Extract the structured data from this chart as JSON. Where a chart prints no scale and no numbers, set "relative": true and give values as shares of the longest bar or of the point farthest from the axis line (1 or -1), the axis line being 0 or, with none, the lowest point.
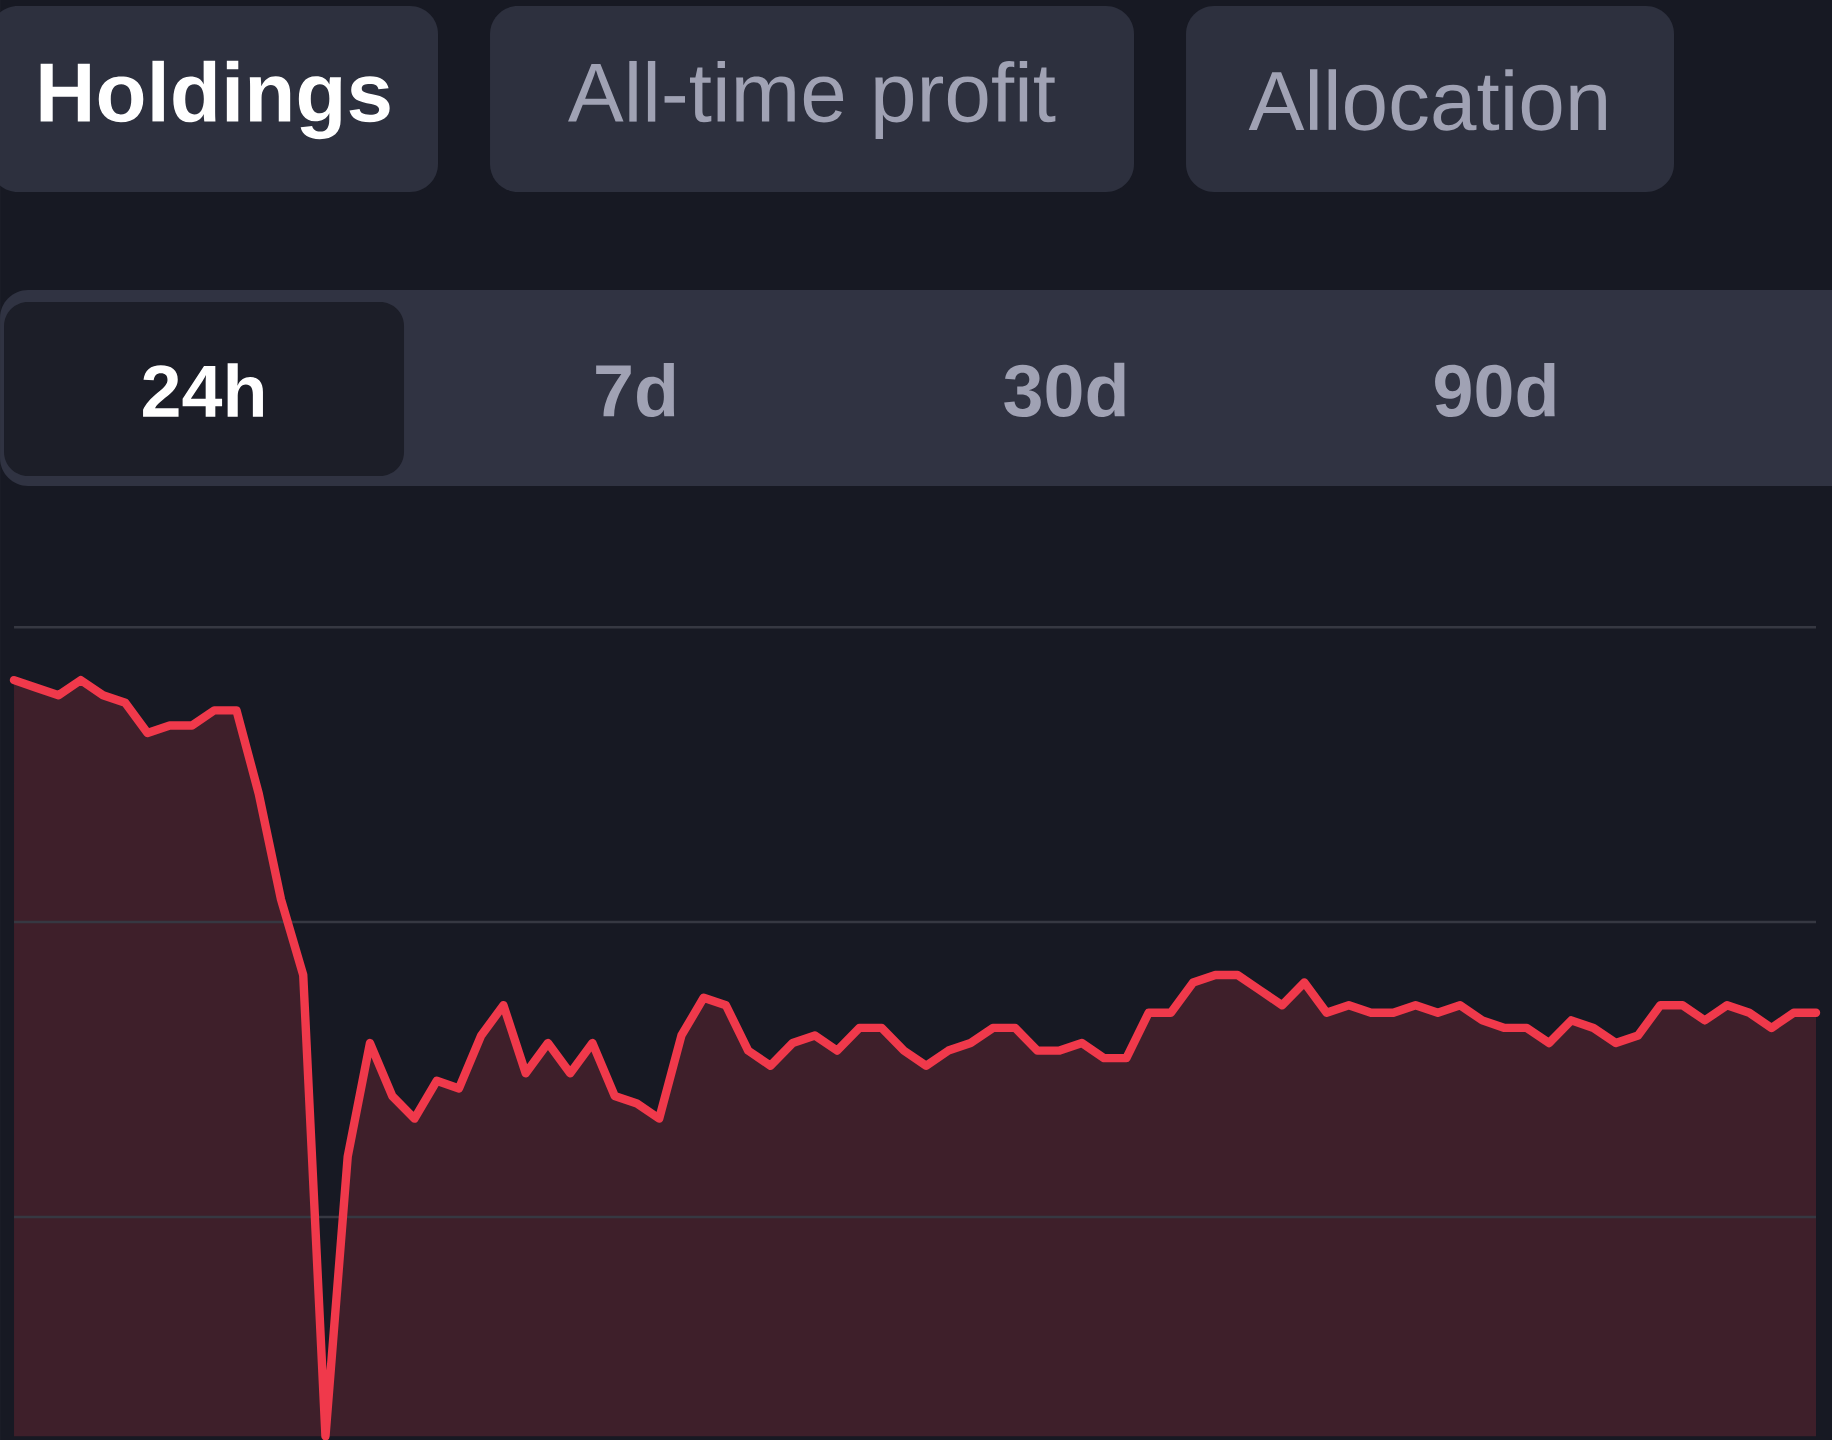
{
  "chart_data": {
    "type": "area",
    "relative": true,
    "color": "#f0394b",
    "ref_lines": [
      {
        "axis": "y",
        "value": 1.07,
        "color": "#363842"
      },
      {
        "axis": "y",
        "value": 0.68,
        "color": "#363842"
      },
      {
        "axis": "y",
        "value": 0.29,
        "color": "#363842"
      }
    ],
    "categories": [
      null,
      null,
      null,
      null,
      null,
      null,
      null,
      null,
      null,
      null,
      null,
      null,
      null,
      null,
      null,
      null,
      null,
      null,
      null,
      null,
      null,
      null,
      null,
      null,
      null,
      null,
      null,
      null,
      null,
      null,
      null,
      null,
      null,
      null,
      null,
      null,
      null,
      null,
      null,
      null,
      null,
      null,
      null,
      null,
      null,
      null,
      null,
      null,
      null,
      null,
      null,
      null,
      null,
      null,
      null,
      null,
      null,
      null,
      null,
      null,
      null,
      null,
      null,
      null,
      null,
      null,
      null,
      null,
      null,
      null,
      null,
      null,
      null,
      null,
      null,
      null,
      null,
      null,
      null,
      null,
      null,
      null
    ],
    "annotations": [
      "Holdings",
      "All-time profit",
      "Allocation",
      "24h",
      "7d",
      "30d",
      "90d"
    ],
    "values": [
      1.0,
      0.99,
      0.98,
      1.0,
      0.98,
      0.97,
      0.93,
      0.94,
      0.94,
      0.96,
      0.96,
      0.85,
      0.71,
      0.61,
      0.0,
      0.37,
      0.52,
      0.45,
      0.42,
      0.47,
      0.46,
      0.53,
      0.57,
      0.48,
      0.52,
      0.48,
      0.52,
      0.45,
      0.44,
      0.42,
      0.53,
      0.58,
      0.57,
      0.51,
      0.49,
      0.52,
      0.53,
      0.51,
      0.54,
      0.54,
      0.51,
      0.49,
      0.51,
      0.52,
      0.54,
      0.54,
      0.51,
      0.51,
      0.52,
      0.5,
      0.5,
      0.56,
      0.56,
      0.6,
      0.61,
      0.61,
      0.59,
      0.57,
      0.6,
      0.56,
      0.57,
      0.56,
      0.56,
      0.57,
      0.56,
      0.57,
      0.55,
      0.54,
      0.54,
      0.52,
      0.55,
      0.54,
      0.52,
      0.53,
      0.57,
      0.57,
      0.55,
      0.57,
      0.56,
      0.54,
      0.56,
      0.56
    ]
  }
}
